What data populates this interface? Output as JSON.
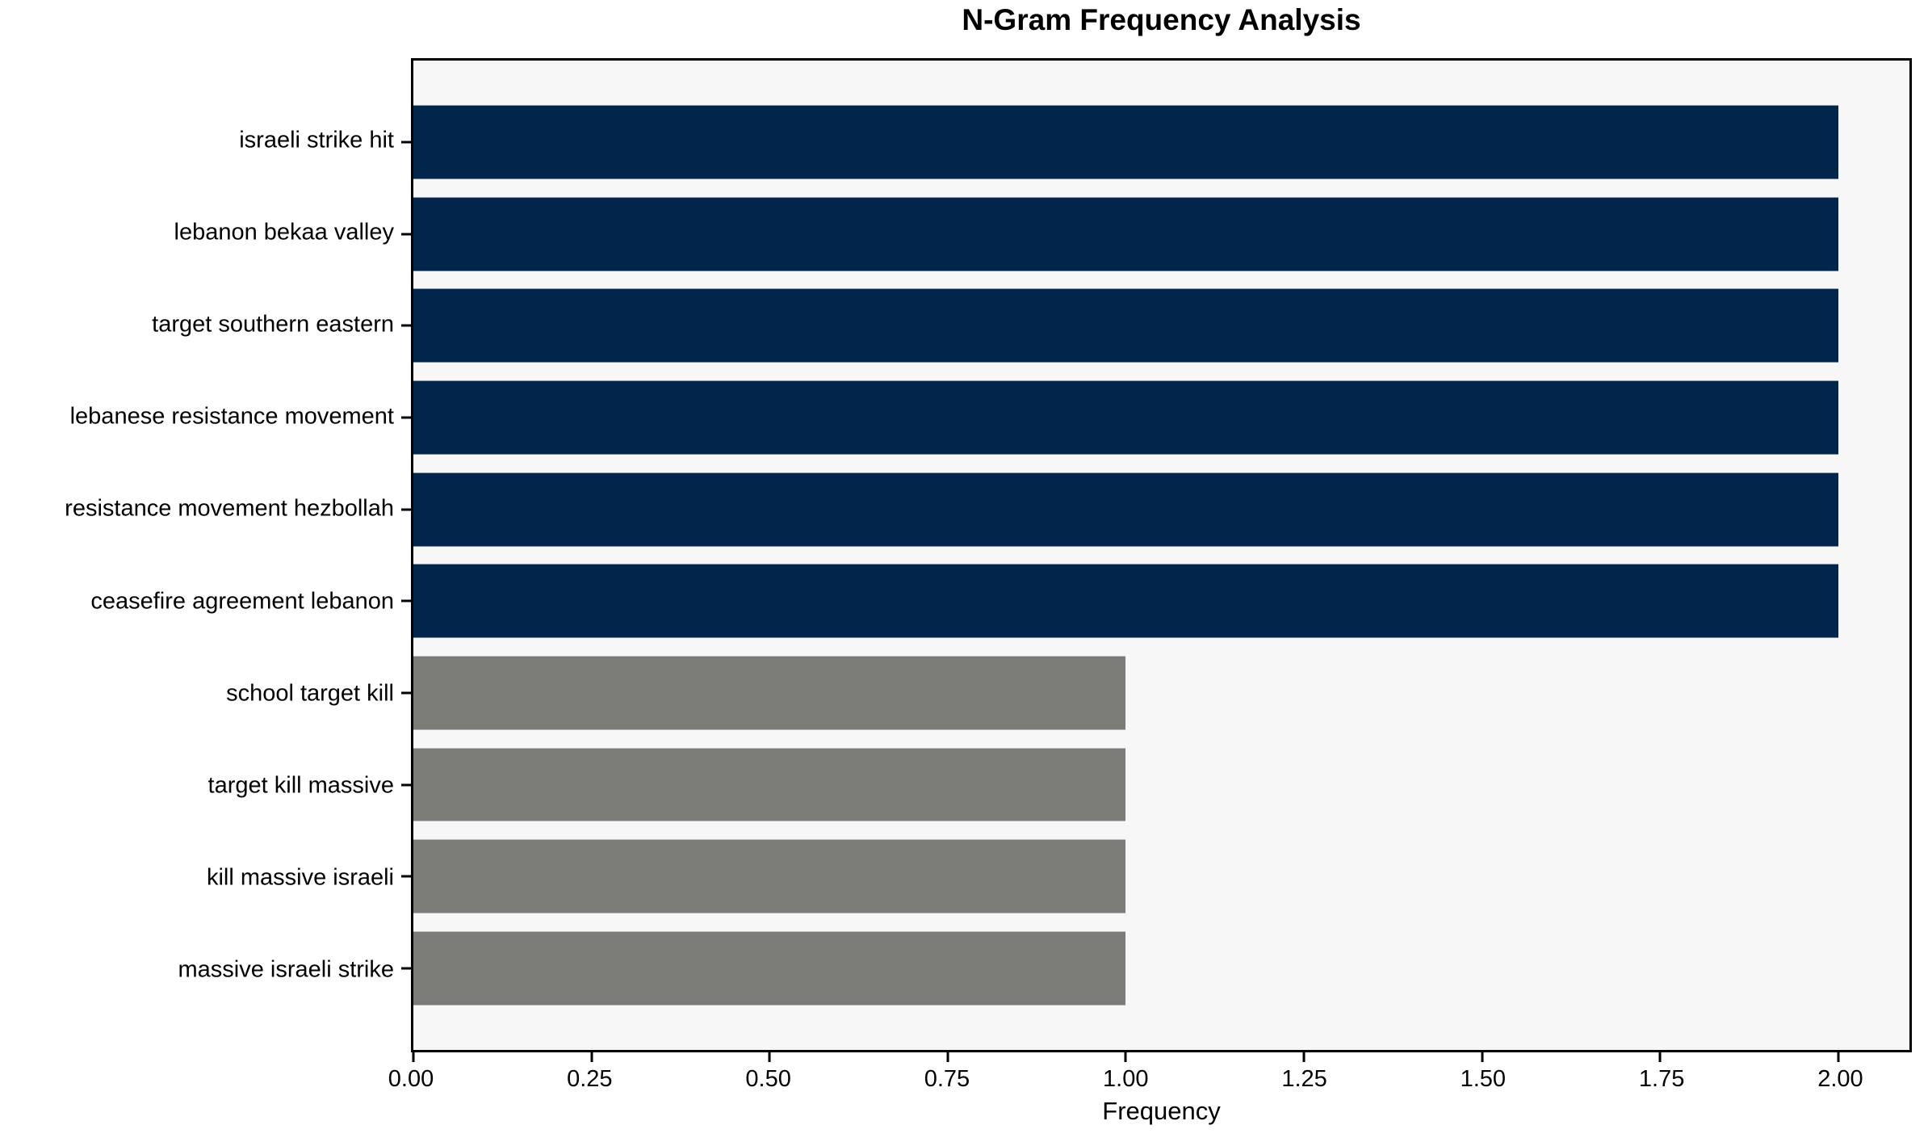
{
  "chart_data": {
    "type": "bar",
    "orientation": "horizontal",
    "title": "N-Gram Frequency Analysis",
    "xlabel": "Frequency",
    "ylabel": "",
    "categories": [
      "israeli strike hit",
      "lebanon bekaa valley",
      "target southern eastern",
      "lebanese resistance movement",
      "resistance movement hezbollah",
      "ceasefire agreement lebanon",
      "school target kill",
      "target kill massive",
      "kill massive israeli",
      "massive israeli strike"
    ],
    "values": [
      2,
      2,
      2,
      2,
      2,
      2,
      1,
      1,
      1,
      1
    ],
    "bar_colors": [
      "#02254c",
      "#02254c",
      "#02254c",
      "#02254c",
      "#02254c",
      "#02254c",
      "#7b7b78",
      "#7b7b78",
      "#7b7b78",
      "#7b7b78"
    ],
    "xlim": [
      0,
      2.1
    ],
    "x_ticks": [
      0,
      0.25,
      0.5,
      0.75,
      1.0,
      1.25,
      1.5,
      1.75,
      2.0
    ],
    "x_tick_labels": [
      "0.00",
      "0.25",
      "0.50",
      "0.75",
      "1.00",
      "1.25",
      "1.50",
      "1.75",
      "2.00"
    ],
    "grid": false,
    "legend": "none",
    "bar_height_fraction": 0.8,
    "colors": {
      "high_frequency_bar": "#02254c",
      "low_frequency_bar": "#7b7b78",
      "plot_background": "#f7f7f7",
      "figure_background": "#ffffff",
      "spine": "#000000",
      "text": "#000000"
    }
  }
}
